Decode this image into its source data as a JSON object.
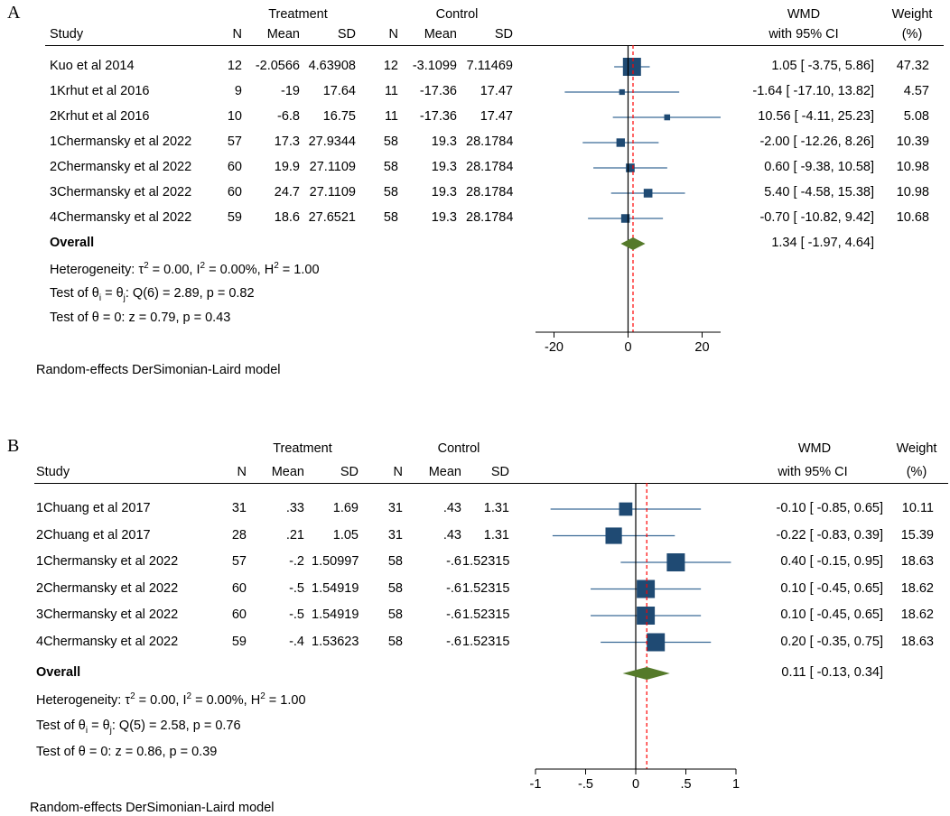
{
  "chart_data": [
    {
      "type": "forest",
      "panel_label": "A",
      "group_headers": {
        "treatment": "Treatment",
        "control": "Control"
      },
      "columns": {
        "study": "Study",
        "n": "N",
        "mean": "Mean",
        "sd": "SD",
        "effect_top": "WMD",
        "effect_bottom": "with 95% CI",
        "weight_top": "Weight",
        "weight_bottom": "(%)"
      },
      "studies": [
        {
          "name": "Kuo et al 2014",
          "t_n": "12",
          "t_mean": "-2.0566",
          "t_sd": "4.63908",
          "c_n": "12",
          "c_mean": "-3.1099",
          "c_sd": "7.11469",
          "est": 1.05,
          "lo": -3.75,
          "hi": 5.86,
          "ci_text": "1.05 [   -3.75,    5.86]",
          "weight": 47.32,
          "weight_text": "47.32"
        },
        {
          "name": "1Krhut et al 2016",
          "t_n": "9",
          "t_mean": "-19",
          "t_sd": "17.64",
          "c_n": "11",
          "c_mean": "-17.36",
          "c_sd": "17.47",
          "est": -1.64,
          "lo": -17.1,
          "hi": 13.82,
          "ci_text": "-1.64 [  -17.10,  13.82]",
          "weight": 4.57,
          "weight_text": "4.57"
        },
        {
          "name": "2Krhut et al 2016",
          "t_n": "10",
          "t_mean": "-6.8",
          "t_sd": "16.75",
          "c_n": "11",
          "c_mean": "-17.36",
          "c_sd": "17.47",
          "est": 10.56,
          "lo": -4.11,
          "hi": 25.23,
          "ci_text": "10.56 [   -4.11,  25.23]",
          "weight": 5.08,
          "weight_text": "5.08"
        },
        {
          "name": "1Chermansky et al 2022",
          "t_n": "57",
          "t_mean": "17.3",
          "t_sd": "27.9344",
          "c_n": "58",
          "c_mean": "19.3",
          "c_sd": "28.1784",
          "est": -2.0,
          "lo": -12.26,
          "hi": 8.26,
          "ci_text": "-2.00 [  -12.26,    8.26]",
          "weight": 10.39,
          "weight_text": "10.39"
        },
        {
          "name": "2Chermansky et al 2022",
          "t_n": "60",
          "t_mean": "19.9",
          "t_sd": "27.1109",
          "c_n": "58",
          "c_mean": "19.3",
          "c_sd": "28.1784",
          "est": 0.6,
          "lo": -9.38,
          "hi": 10.58,
          "ci_text": "0.60 [   -9.38,  10.58]",
          "weight": 10.98,
          "weight_text": "10.98"
        },
        {
          "name": "3Chermansky et al 2022",
          "t_n": "60",
          "t_mean": "24.7",
          "t_sd": "27.1109",
          "c_n": "58",
          "c_mean": "19.3",
          "c_sd": "28.1784",
          "est": 5.4,
          "lo": -4.58,
          "hi": 15.38,
          "ci_text": "5.40 [   -4.58,  15.38]",
          "weight": 10.98,
          "weight_text": "10.98"
        },
        {
          "name": "4Chermansky et al 2022",
          "t_n": "59",
          "t_mean": "18.6",
          "t_sd": "27.6521",
          "c_n": "58",
          "c_mean": "19.3",
          "c_sd": "28.1784",
          "est": -0.7,
          "lo": -10.82,
          "hi": 9.42,
          "ci_text": "-0.70 [  -10.82,    9.42]",
          "weight": 10.68,
          "weight_text": "10.68"
        }
      ],
      "overall": {
        "label": "Overall",
        "est": 1.34,
        "lo": -1.97,
        "hi": 4.64,
        "ci_text": "1.34 [   -1.97,    4.64]"
      },
      "heterogeneity": {
        "pre": "Heterogeneity: ",
        "tau_sym": "τ",
        "sup2a": "2",
        "tau_rest": " = 0.00, I",
        "sup2b": "2",
        "i_rest": " = 0.00%, H",
        "sup2c": "2",
        "h_rest": " = 1.00"
      },
      "test_equal": {
        "pre": "Test of θ",
        "sub_i": "i",
        "mid": " = θ",
        "sub_j": "j",
        "post": ": Q(6) = 2.89, p = 0.82"
      },
      "test_zero": "Test of θ = 0: z = 0.79, p = 0.43",
      "axis": {
        "xlim": [
          -25,
          25
        ],
        "ticks": [
          -20,
          0,
          20
        ],
        "tick_labels": [
          "-20",
          "0",
          "20"
        ],
        "ref_line": 0
      },
      "model_note": "Random-effects DerSimonian-Laird model",
      "colors": {
        "marker": "#1f4a73",
        "ci_line": "#3b6b96",
        "diamond": "#557a2a",
        "overall_line": "#ff0000"
      }
    },
    {
      "type": "forest",
      "panel_label": "B",
      "group_headers": {
        "treatment": "Treatment",
        "control": "Control"
      },
      "columns": {
        "study": "Study",
        "n": "N",
        "mean": "Mean",
        "sd": "SD",
        "effect_top": "WMD",
        "effect_bottom": "with 95% CI",
        "weight_top": "Weight",
        "weight_bottom": "(%)"
      },
      "studies": [
        {
          "name": "1Chuang et al 2017",
          "t_n": "31",
          "t_mean": ".33",
          "t_sd": "1.69",
          "c_n": "31",
          "c_mean": ".43",
          "c_sd": "1.31",
          "est": -0.1,
          "lo": -0.85,
          "hi": 0.65,
          "ci_text": "-0.10 [   -0.85,    0.65]",
          "weight": 10.11,
          "weight_text": "10.11"
        },
        {
          "name": "2Chuang et al 2017",
          "t_n": "28",
          "t_mean": ".21",
          "t_sd": "1.05",
          "c_n": "31",
          "c_mean": ".43",
          "c_sd": "1.31",
          "est": -0.22,
          "lo": -0.83,
          "hi": 0.39,
          "ci_text": "-0.22 [   -0.83,    0.39]",
          "weight": 15.39,
          "weight_text": "15.39"
        },
        {
          "name": "1Chermansky et al 2022",
          "t_n": "57",
          "t_mean": "-.2",
          "t_sd": "1.50997",
          "c_n": "58",
          "c_mean": "-.6",
          "c_sd": "1.52315",
          "est": 0.4,
          "lo": -0.15,
          "hi": 0.95,
          "ci_text": "0.40 [   -0.15,    0.95]",
          "weight": 18.63,
          "weight_text": "18.63"
        },
        {
          "name": "2Chermansky et al 2022",
          "t_n": "60",
          "t_mean": "-.5",
          "t_sd": "1.54919",
          "c_n": "58",
          "c_mean": "-.6",
          "c_sd": "1.52315",
          "est": 0.1,
          "lo": -0.45,
          "hi": 0.65,
          "ci_text": "0.10 [   -0.45,    0.65]",
          "weight": 18.62,
          "weight_text": "18.62"
        },
        {
          "name": "3Chermansky et al 2022",
          "t_n": "60",
          "t_mean": "-.5",
          "t_sd": "1.54919",
          "c_n": "58",
          "c_mean": "-.6",
          "c_sd": "1.52315",
          "est": 0.1,
          "lo": -0.45,
          "hi": 0.65,
          "ci_text": "0.10 [   -0.45,    0.65]",
          "weight": 18.62,
          "weight_text": "18.62"
        },
        {
          "name": "4Chermansky et al 2022",
          "t_n": "59",
          "t_mean": "-.4",
          "t_sd": "1.53623",
          "c_n": "58",
          "c_mean": "-.6",
          "c_sd": "1.52315",
          "est": 0.2,
          "lo": -0.35,
          "hi": 0.75,
          "ci_text": "0.20 [   -0.35,    0.75]",
          "weight": 18.63,
          "weight_text": "18.63"
        }
      ],
      "overall": {
        "label": "Overall",
        "est": 0.11,
        "lo": -0.13,
        "hi": 0.34,
        "ci_text": "0.11 [   -0.13,    0.34]"
      },
      "heterogeneity": {
        "pre": "Heterogeneity: ",
        "tau_sym": "τ",
        "sup2a": "2",
        "tau_rest": " = 0.00, I",
        "sup2b": "2",
        "i_rest": " = 0.00%, H",
        "sup2c": "2",
        "h_rest": " = 1.00"
      },
      "test_equal": {
        "pre": "Test of θ",
        "sub_i": "i",
        "mid": " = θ",
        "sub_j": "j",
        "post": ": Q(5) = 2.58, p = 0.76"
      },
      "test_zero": "Test of θ = 0: z = 0.86, p = 0.39",
      "axis": {
        "xlim": [
          -1,
          1
        ],
        "ticks": [
          -1,
          -0.5,
          0,
          0.5,
          1
        ],
        "tick_labels": [
          "-1",
          "-.5",
          "0",
          ".5",
          "1"
        ],
        "ref_line": 0
      },
      "model_note": "Random-effects DerSimonian-Laird model",
      "colors": {
        "marker": "#1f4a73",
        "ci_line": "#3b6b96",
        "diamond": "#557a2a",
        "overall_line": "#ff0000"
      }
    }
  ]
}
